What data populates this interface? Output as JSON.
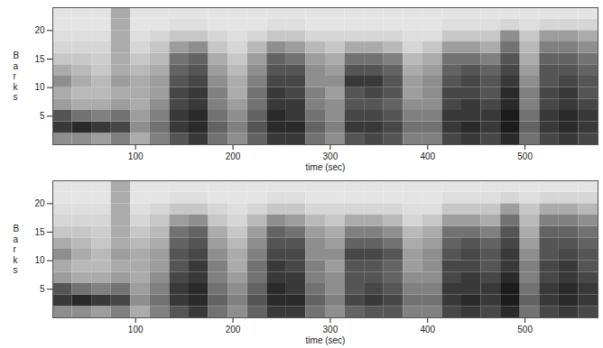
{
  "chart_data": [
    {
      "type": "heatmap",
      "xlabel": "time (sec)",
      "ylabel": "Barks",
      "xlim": [
        15,
        575
      ],
      "ylim": [
        0,
        24
      ],
      "xticks": [
        100,
        200,
        300,
        400,
        500
      ],
      "yticks": [
        5,
        10,
        15,
        20
      ],
      "xbins": [
        15,
        35,
        55,
        75,
        95,
        115,
        135,
        155,
        175,
        195,
        215,
        235,
        255,
        275,
        295,
        315,
        335,
        355,
        375,
        395,
        415,
        435,
        455,
        475,
        495,
        515,
        535,
        555,
        575
      ],
      "ybins": [
        0,
        2,
        4,
        6,
        8,
        10,
        12,
        14,
        16,
        18,
        20,
        22,
        24
      ],
      "cells": [
        [
          0.4,
          0.7,
          0.6,
          0.35,
          0.3,
          0.4,
          0.3,
          0.2,
          0.15,
          0.12,
          0.1,
          0.1
        ],
        [
          0.4,
          0.75,
          0.5,
          0.3,
          0.25,
          0.3,
          0.25,
          0.2,
          0.15,
          0.12,
          0.1,
          0.1
        ],
        [
          0.35,
          0.7,
          0.45,
          0.3,
          0.25,
          0.25,
          0.2,
          0.18,
          0.15,
          0.12,
          0.1,
          0.1
        ],
        [
          0.45,
          0.65,
          0.5,
          0.35,
          0.3,
          0.35,
          0.3,
          0.3,
          0.3,
          0.3,
          0.3,
          0.3
        ],
        [
          0.3,
          0.4,
          0.35,
          0.3,
          0.3,
          0.3,
          0.25,
          0.2,
          0.15,
          0.12,
          0.1,
          0.1
        ],
        [
          0.45,
          0.5,
          0.45,
          0.4,
          0.35,
          0.35,
          0.3,
          0.25,
          0.2,
          0.15,
          0.1,
          0.1
        ],
        [
          0.6,
          0.7,
          0.7,
          0.65,
          0.65,
          0.6,
          0.55,
          0.5,
          0.35,
          0.2,
          0.12,
          0.1
        ],
        [
          0.7,
          0.75,
          0.75,
          0.7,
          0.7,
          0.65,
          0.6,
          0.55,
          0.4,
          0.2,
          0.12,
          0.1
        ],
        [
          0.5,
          0.55,
          0.5,
          0.45,
          0.45,
          0.4,
          0.35,
          0.3,
          0.2,
          0.15,
          0.1,
          0.1
        ],
        [
          0.4,
          0.45,
          0.4,
          0.35,
          0.3,
          0.3,
          0.25,
          0.2,
          0.15,
          0.12,
          0.1,
          0.1
        ],
        [
          0.55,
          0.6,
          0.55,
          0.5,
          0.5,
          0.45,
          0.4,
          0.35,
          0.25,
          0.15,
          0.1,
          0.1
        ],
        [
          0.7,
          0.75,
          0.75,
          0.7,
          0.7,
          0.65,
          0.6,
          0.55,
          0.4,
          0.2,
          0.12,
          0.1
        ],
        [
          0.7,
          0.75,
          0.7,
          0.7,
          0.65,
          0.65,
          0.6,
          0.5,
          0.35,
          0.2,
          0.12,
          0.1
        ],
        [
          0.5,
          0.55,
          0.5,
          0.45,
          0.45,
          0.4,
          0.4,
          0.35,
          0.25,
          0.15,
          0.1,
          0.1
        ],
        [
          0.4,
          0.45,
          0.4,
          0.4,
          0.35,
          0.4,
          0.35,
          0.3,
          0.2,
          0.15,
          0.1,
          0.1
        ],
        [
          0.6,
          0.7,
          0.65,
          0.6,
          0.6,
          0.7,
          0.6,
          0.5,
          0.3,
          0.15,
          0.1,
          0.1
        ],
        [
          0.65,
          0.7,
          0.65,
          0.6,
          0.65,
          0.7,
          0.6,
          0.5,
          0.3,
          0.15,
          0.1,
          0.1
        ],
        [
          0.6,
          0.65,
          0.6,
          0.55,
          0.6,
          0.6,
          0.55,
          0.45,
          0.25,
          0.15,
          0.1,
          0.1
        ],
        [
          0.45,
          0.5,
          0.45,
          0.4,
          0.35,
          0.35,
          0.3,
          0.25,
          0.15,
          0.12,
          0.1,
          0.1
        ],
        [
          0.45,
          0.5,
          0.45,
          0.4,
          0.4,
          0.4,
          0.35,
          0.3,
          0.2,
          0.12,
          0.1,
          0.1
        ],
        [
          0.65,
          0.7,
          0.7,
          0.65,
          0.65,
          0.6,
          0.55,
          0.5,
          0.35,
          0.2,
          0.12,
          0.1
        ],
        [
          0.7,
          0.75,
          0.7,
          0.7,
          0.65,
          0.65,
          0.6,
          0.5,
          0.35,
          0.2,
          0.12,
          0.1
        ],
        [
          0.65,
          0.7,
          0.7,
          0.65,
          0.6,
          0.6,
          0.55,
          0.45,
          0.3,
          0.2,
          0.12,
          0.1
        ],
        [
          0.75,
          0.8,
          0.8,
          0.75,
          0.75,
          0.7,
          0.65,
          0.6,
          0.5,
          0.4,
          0.15,
          0.1
        ],
        [
          0.5,
          0.55,
          0.5,
          0.45,
          0.45,
          0.4,
          0.35,
          0.3,
          0.25,
          0.2,
          0.12,
          0.1
        ],
        [
          0.65,
          0.7,
          0.7,
          0.65,
          0.65,
          0.6,
          0.6,
          0.55,
          0.45,
          0.35,
          0.15,
          0.1
        ],
        [
          0.7,
          0.75,
          0.75,
          0.7,
          0.7,
          0.65,
          0.6,
          0.55,
          0.45,
          0.35,
          0.15,
          0.1
        ],
        [
          0.65,
          0.7,
          0.7,
          0.65,
          0.6,
          0.6,
          0.55,
          0.5,
          0.4,
          0.3,
          0.15,
          0.1
        ]
      ]
    },
    {
      "type": "heatmap",
      "xlabel": "time (sec)",
      "ylabel": "Barks",
      "xlim": [
        15,
        575
      ],
      "ylim": [
        0,
        24
      ],
      "xticks": [
        100,
        200,
        300,
        400,
        500
      ],
      "yticks": [
        5,
        10,
        15,
        20
      ],
      "xbins": [
        15,
        35,
        55,
        75,
        95,
        115,
        135,
        155,
        175,
        195,
        215,
        235,
        255,
        275,
        295,
        315,
        335,
        355,
        375,
        395,
        415,
        435,
        455,
        475,
        495,
        515,
        535,
        555,
        575
      ],
      "ybins": [
        0,
        2,
        4,
        6,
        8,
        10,
        12,
        14,
        16,
        18,
        20,
        22,
        24
      ],
      "cells": [
        [
          0.4,
          0.7,
          0.6,
          0.35,
          0.3,
          0.4,
          0.3,
          0.2,
          0.15,
          0.12,
          0.1,
          0.1
        ],
        [
          0.4,
          0.75,
          0.5,
          0.3,
          0.25,
          0.3,
          0.25,
          0.2,
          0.15,
          0.12,
          0.1,
          0.1
        ],
        [
          0.35,
          0.7,
          0.45,
          0.3,
          0.25,
          0.25,
          0.2,
          0.18,
          0.15,
          0.12,
          0.1,
          0.1
        ],
        [
          0.45,
          0.65,
          0.5,
          0.35,
          0.3,
          0.35,
          0.3,
          0.3,
          0.3,
          0.3,
          0.3,
          0.3
        ],
        [
          0.3,
          0.4,
          0.35,
          0.3,
          0.3,
          0.3,
          0.25,
          0.2,
          0.15,
          0.12,
          0.1,
          0.1
        ],
        [
          0.45,
          0.5,
          0.45,
          0.4,
          0.35,
          0.35,
          0.3,
          0.25,
          0.2,
          0.15,
          0.1,
          0.1
        ],
        [
          0.6,
          0.7,
          0.7,
          0.65,
          0.6,
          0.6,
          0.55,
          0.5,
          0.35,
          0.2,
          0.12,
          0.1
        ],
        [
          0.7,
          0.75,
          0.75,
          0.7,
          0.7,
          0.65,
          0.6,
          0.55,
          0.4,
          0.2,
          0.12,
          0.1
        ],
        [
          0.5,
          0.55,
          0.5,
          0.45,
          0.45,
          0.4,
          0.35,
          0.3,
          0.2,
          0.15,
          0.1,
          0.1
        ],
        [
          0.4,
          0.45,
          0.4,
          0.35,
          0.3,
          0.3,
          0.25,
          0.2,
          0.15,
          0.12,
          0.1,
          0.1
        ],
        [
          0.55,
          0.6,
          0.55,
          0.5,
          0.5,
          0.45,
          0.4,
          0.35,
          0.25,
          0.15,
          0.1,
          0.1
        ],
        [
          0.7,
          0.75,
          0.75,
          0.7,
          0.7,
          0.65,
          0.6,
          0.55,
          0.4,
          0.2,
          0.12,
          0.1
        ],
        [
          0.7,
          0.75,
          0.7,
          0.7,
          0.65,
          0.65,
          0.6,
          0.5,
          0.35,
          0.2,
          0.12,
          0.1
        ],
        [
          0.5,
          0.55,
          0.5,
          0.45,
          0.45,
          0.4,
          0.4,
          0.35,
          0.25,
          0.15,
          0.1,
          0.1
        ],
        [
          0.4,
          0.45,
          0.4,
          0.4,
          0.35,
          0.4,
          0.35,
          0.3,
          0.2,
          0.15,
          0.1,
          0.1
        ],
        [
          0.55,
          0.65,
          0.6,
          0.6,
          0.6,
          0.65,
          0.55,
          0.45,
          0.3,
          0.15,
          0.1,
          0.1
        ],
        [
          0.6,
          0.7,
          0.65,
          0.6,
          0.6,
          0.65,
          0.55,
          0.45,
          0.3,
          0.15,
          0.1,
          0.1
        ],
        [
          0.6,
          0.65,
          0.6,
          0.55,
          0.55,
          0.6,
          0.5,
          0.4,
          0.25,
          0.15,
          0.1,
          0.1
        ],
        [
          0.45,
          0.5,
          0.45,
          0.4,
          0.35,
          0.35,
          0.3,
          0.25,
          0.15,
          0.12,
          0.1,
          0.1
        ],
        [
          0.45,
          0.5,
          0.45,
          0.4,
          0.4,
          0.4,
          0.35,
          0.3,
          0.2,
          0.12,
          0.1,
          0.1
        ],
        [
          0.65,
          0.7,
          0.7,
          0.65,
          0.65,
          0.6,
          0.55,
          0.5,
          0.35,
          0.2,
          0.12,
          0.1
        ],
        [
          0.7,
          0.75,
          0.7,
          0.7,
          0.65,
          0.65,
          0.6,
          0.5,
          0.35,
          0.2,
          0.12,
          0.1
        ],
        [
          0.65,
          0.7,
          0.7,
          0.65,
          0.6,
          0.6,
          0.55,
          0.45,
          0.3,
          0.2,
          0.12,
          0.1
        ],
        [
          0.75,
          0.8,
          0.8,
          0.75,
          0.7,
          0.7,
          0.65,
          0.6,
          0.5,
          0.35,
          0.15,
          0.1
        ],
        [
          0.5,
          0.55,
          0.5,
          0.45,
          0.45,
          0.4,
          0.35,
          0.3,
          0.25,
          0.2,
          0.12,
          0.1
        ],
        [
          0.65,
          0.7,
          0.7,
          0.65,
          0.65,
          0.6,
          0.6,
          0.55,
          0.45,
          0.3,
          0.15,
          0.1
        ],
        [
          0.7,
          0.75,
          0.75,
          0.7,
          0.7,
          0.65,
          0.6,
          0.55,
          0.45,
          0.3,
          0.15,
          0.1
        ],
        [
          0.65,
          0.7,
          0.7,
          0.65,
          0.6,
          0.6,
          0.55,
          0.5,
          0.4,
          0.25,
          0.15,
          0.1
        ]
      ]
    }
  ]
}
